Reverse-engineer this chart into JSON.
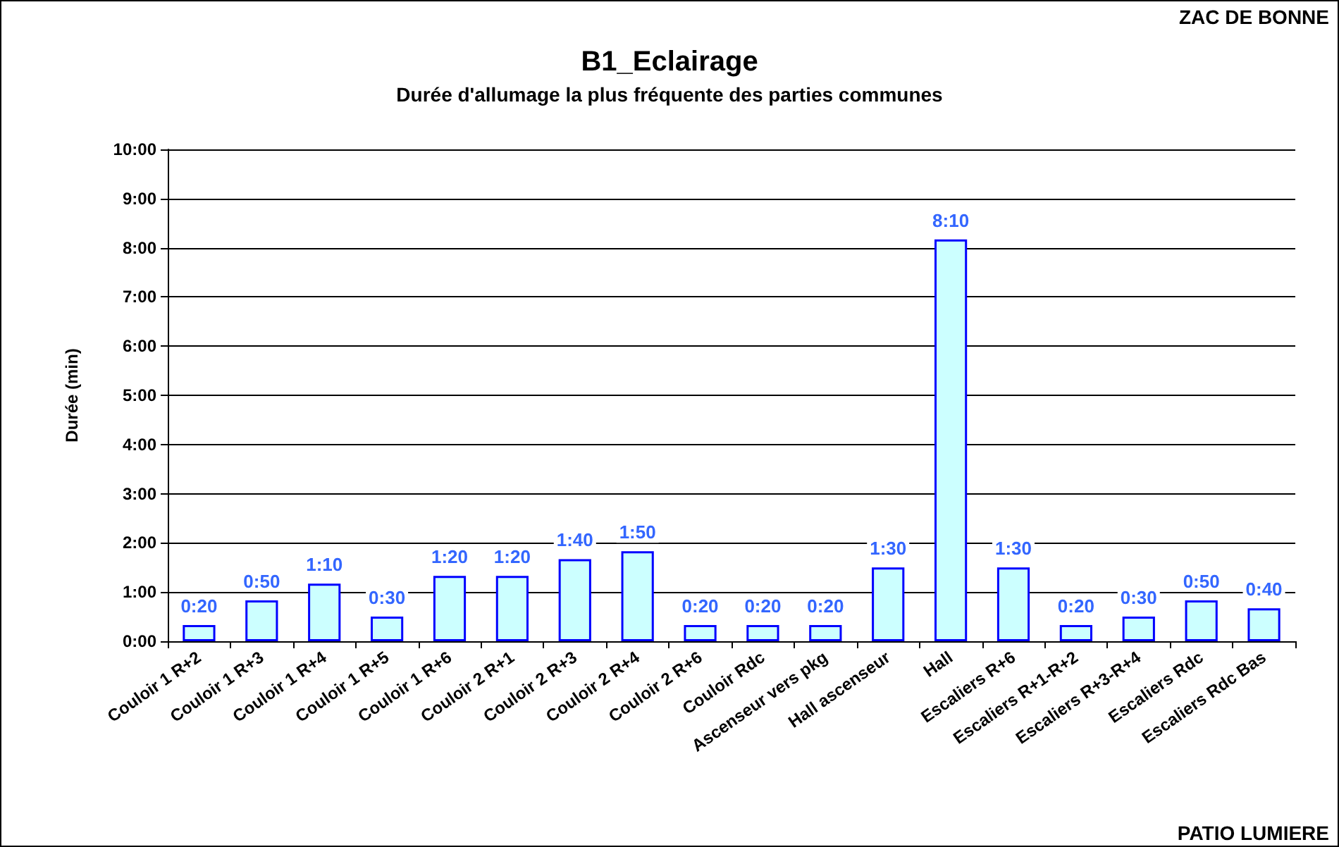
{
  "chart_data": {
    "type": "bar",
    "title": "B1_Eclairage",
    "subtitle": "Durée d'allumage la plus fréquente des parties communes",
    "ylabel": "Durée (min)",
    "annotations": [
      "ZAC DE BONNE",
      "PATIO LUMIERE"
    ],
    "categories": [
      "Couloir 1 R+2",
      "Couloir 1 R+3",
      "Couloir 1 R+4",
      "Couloir 1 R+5",
      "Couloir 1 R+6",
      "Couloir 2 R+1",
      "Couloir 2 R+3",
      "Couloir 2 R+4",
      "Couloir 2 R+6",
      "Couloir Rdc",
      "Ascenseur vers pkg",
      "Hall ascenseur",
      "Hall",
      "Escaliers R+6",
      "Escaliers R+1-R+2",
      "Escaliers R+3-R+4",
      "Escaliers Rdc",
      "Escaliers Rdc Bas"
    ],
    "values": [
      0.33,
      0.83,
      1.17,
      0.5,
      1.33,
      1.33,
      1.67,
      1.83,
      0.33,
      0.33,
      0.33,
      1.5,
      8.17,
      1.5,
      0.33,
      0.5,
      0.83,
      0.67
    ],
    "value_labels": [
      "0:20",
      "0:50",
      "1:10",
      "0:30",
      "1:20",
      "1:20",
      "1:40",
      "1:50",
      "0:20",
      "0:20",
      "0:20",
      "1:30",
      "8:10",
      "1:30",
      "0:20",
      "0:30",
      "0:50",
      "0:40"
    ],
    "color": "#ccffff",
    "ylim": [
      0,
      10
    ],
    "yticks": [
      {
        "value": 0,
        "label": "0:00"
      },
      {
        "value": 1,
        "label": "1:00"
      },
      {
        "value": 2,
        "label": "2:00"
      },
      {
        "value": 3,
        "label": "3:00"
      },
      {
        "value": 4,
        "label": "4:00"
      },
      {
        "value": 5,
        "label": "5:00"
      },
      {
        "value": 6,
        "label": "6:00"
      },
      {
        "value": 7,
        "label": "7:00"
      },
      {
        "value": 8,
        "label": "8:00"
      },
      {
        "value": 9,
        "label": "9:00"
      },
      {
        "value": 10,
        "label": "10:00"
      }
    ],
    "grid": "y"
  }
}
